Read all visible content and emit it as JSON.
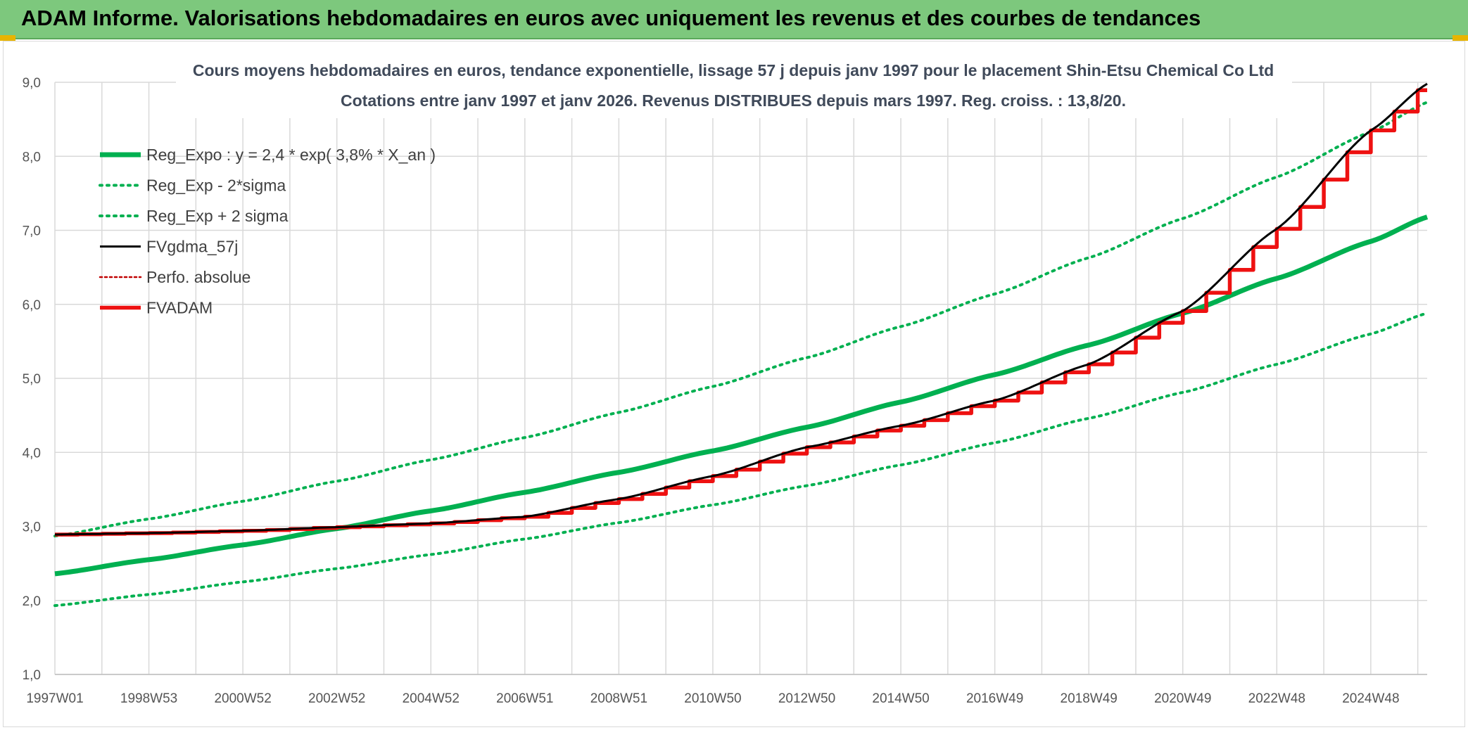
{
  "header": {
    "title": "ADAM Informe. Valorisations hebdomadaires en euros avec uniquement les revenus et des courbes de tendances"
  },
  "chart_data": {
    "type": "line",
    "title": "Cours moyens hebdomadaires en euros, tendance exponentielle, lissage 57 j depuis janv 1997 pour le placement Shin-Etsu Chemical Co Ltd",
    "subtitle": "Cotations entre janv 1997 et janv 2026. Revenus DISTRIBUES depuis mars 1997. Reg. croiss. : 13,8/20.",
    "xlabel": "",
    "ylabel": "",
    "x_range": [
      1997.0,
      2026.2
    ],
    "ylim": [
      1.0,
      9.0
    ],
    "y_ticks": [
      "1,0",
      "2,0",
      "3,0",
      "4,0",
      "5,0",
      "6,0",
      "7,0",
      "8,0",
      "9,0"
    ],
    "x_tick_labels": [
      {
        "label": "1997W01",
        "x": 1997.0
      },
      {
        "label": "1998W53",
        "x": 1999.0
      },
      {
        "label": "2000W52",
        "x": 2001.0
      },
      {
        "label": "2002W52",
        "x": 2003.0
      },
      {
        "label": "2004W52",
        "x": 2005.0
      },
      {
        "label": "2006W51",
        "x": 2007.0
      },
      {
        "label": "2008W51",
        "x": 2009.0
      },
      {
        "label": "2010W50",
        "x": 2011.0
      },
      {
        "label": "2012W50",
        "x": 2013.0
      },
      {
        "label": "2014W50",
        "x": 2015.0
      },
      {
        "label": "2016W49",
        "x": 2017.0
      },
      {
        "label": "2018W49",
        "x": 2019.0
      },
      {
        "label": "2020W49",
        "x": 2021.0
      },
      {
        "label": "2022W48",
        "x": 2023.0
      },
      {
        "label": "2024W48",
        "x": 2025.0
      }
    ],
    "grid": true,
    "legend_position": "top-left",
    "series": [
      {
        "name": "Reg_Expo : y = 2,4 * exp( 3,8% *  X_an )",
        "color": "#00b050",
        "style": "solid-thick",
        "x": [
          1997,
          1999,
          2001,
          2003,
          2005,
          2007,
          2009,
          2011,
          2013,
          2015,
          2017,
          2019,
          2021,
          2023,
          2025,
          2026.2
        ],
        "values": [
          2.36,
          2.55,
          2.75,
          2.97,
          3.21,
          3.46,
          3.73,
          4.02,
          4.34,
          4.68,
          5.05,
          5.45,
          5.88,
          6.35,
          6.85,
          7.18
        ]
      },
      {
        "name": "Reg_Exp - 2*sigma",
        "color": "#00b050",
        "style": "dotted",
        "x": [
          1997,
          1999,
          2001,
          2003,
          2005,
          2007,
          2009,
          2011,
          2013,
          2015,
          2017,
          2019,
          2021,
          2023,
          2025,
          2026.2
        ],
        "values": [
          1.93,
          2.08,
          2.25,
          2.43,
          2.62,
          2.83,
          3.05,
          3.29,
          3.55,
          3.83,
          4.13,
          4.46,
          4.81,
          5.19,
          5.6,
          5.88
        ]
      },
      {
        "name": "Reg_Exp + 2 sigma",
        "color": "#00b050",
        "style": "dotted",
        "x": [
          1997,
          1999,
          2001,
          2003,
          2005,
          2007,
          2009,
          2011,
          2013,
          2015,
          2017,
          2019,
          2021,
          2023,
          2025,
          2026.2
        ],
        "values": [
          2.87,
          3.1,
          3.34,
          3.61,
          3.9,
          4.2,
          4.54,
          4.89,
          5.28,
          5.7,
          6.14,
          6.63,
          7.16,
          7.72,
          8.33,
          8.73
        ]
      },
      {
        "name": "FVgdma_57j",
        "color": "#000000",
        "style": "solid-thin",
        "x": [
          1997,
          1999,
          2001,
          2003,
          2005,
          2007,
          2009,
          2011,
          2013,
          2015,
          2017,
          2019,
          2021,
          2023,
          2025,
          2026.2
        ],
        "values": [
          2.89,
          2.91,
          2.94,
          2.99,
          3.04,
          3.13,
          3.37,
          3.68,
          4.07,
          4.36,
          4.7,
          5.19,
          5.91,
          7.02,
          8.35,
          8.98
        ]
      },
      {
        "name": "Perfo. absolue",
        "color": "#c00000",
        "style": "dotted-thin",
        "x": [],
        "values": []
      },
      {
        "name": "FVADAM",
        "color": "#ee1111",
        "style": "solid-thick-step",
        "x": [
          1997,
          1999,
          2001,
          2003,
          2005,
          2007,
          2009,
          2011,
          2013,
          2015,
          2017,
          2019,
          2021,
          2023,
          2025,
          2026.2
        ],
        "values": [
          2.89,
          2.91,
          2.94,
          2.99,
          3.04,
          3.13,
          3.37,
          3.68,
          4.07,
          4.36,
          4.7,
          5.19,
          5.91,
          7.02,
          8.35,
          8.98
        ]
      }
    ]
  }
}
